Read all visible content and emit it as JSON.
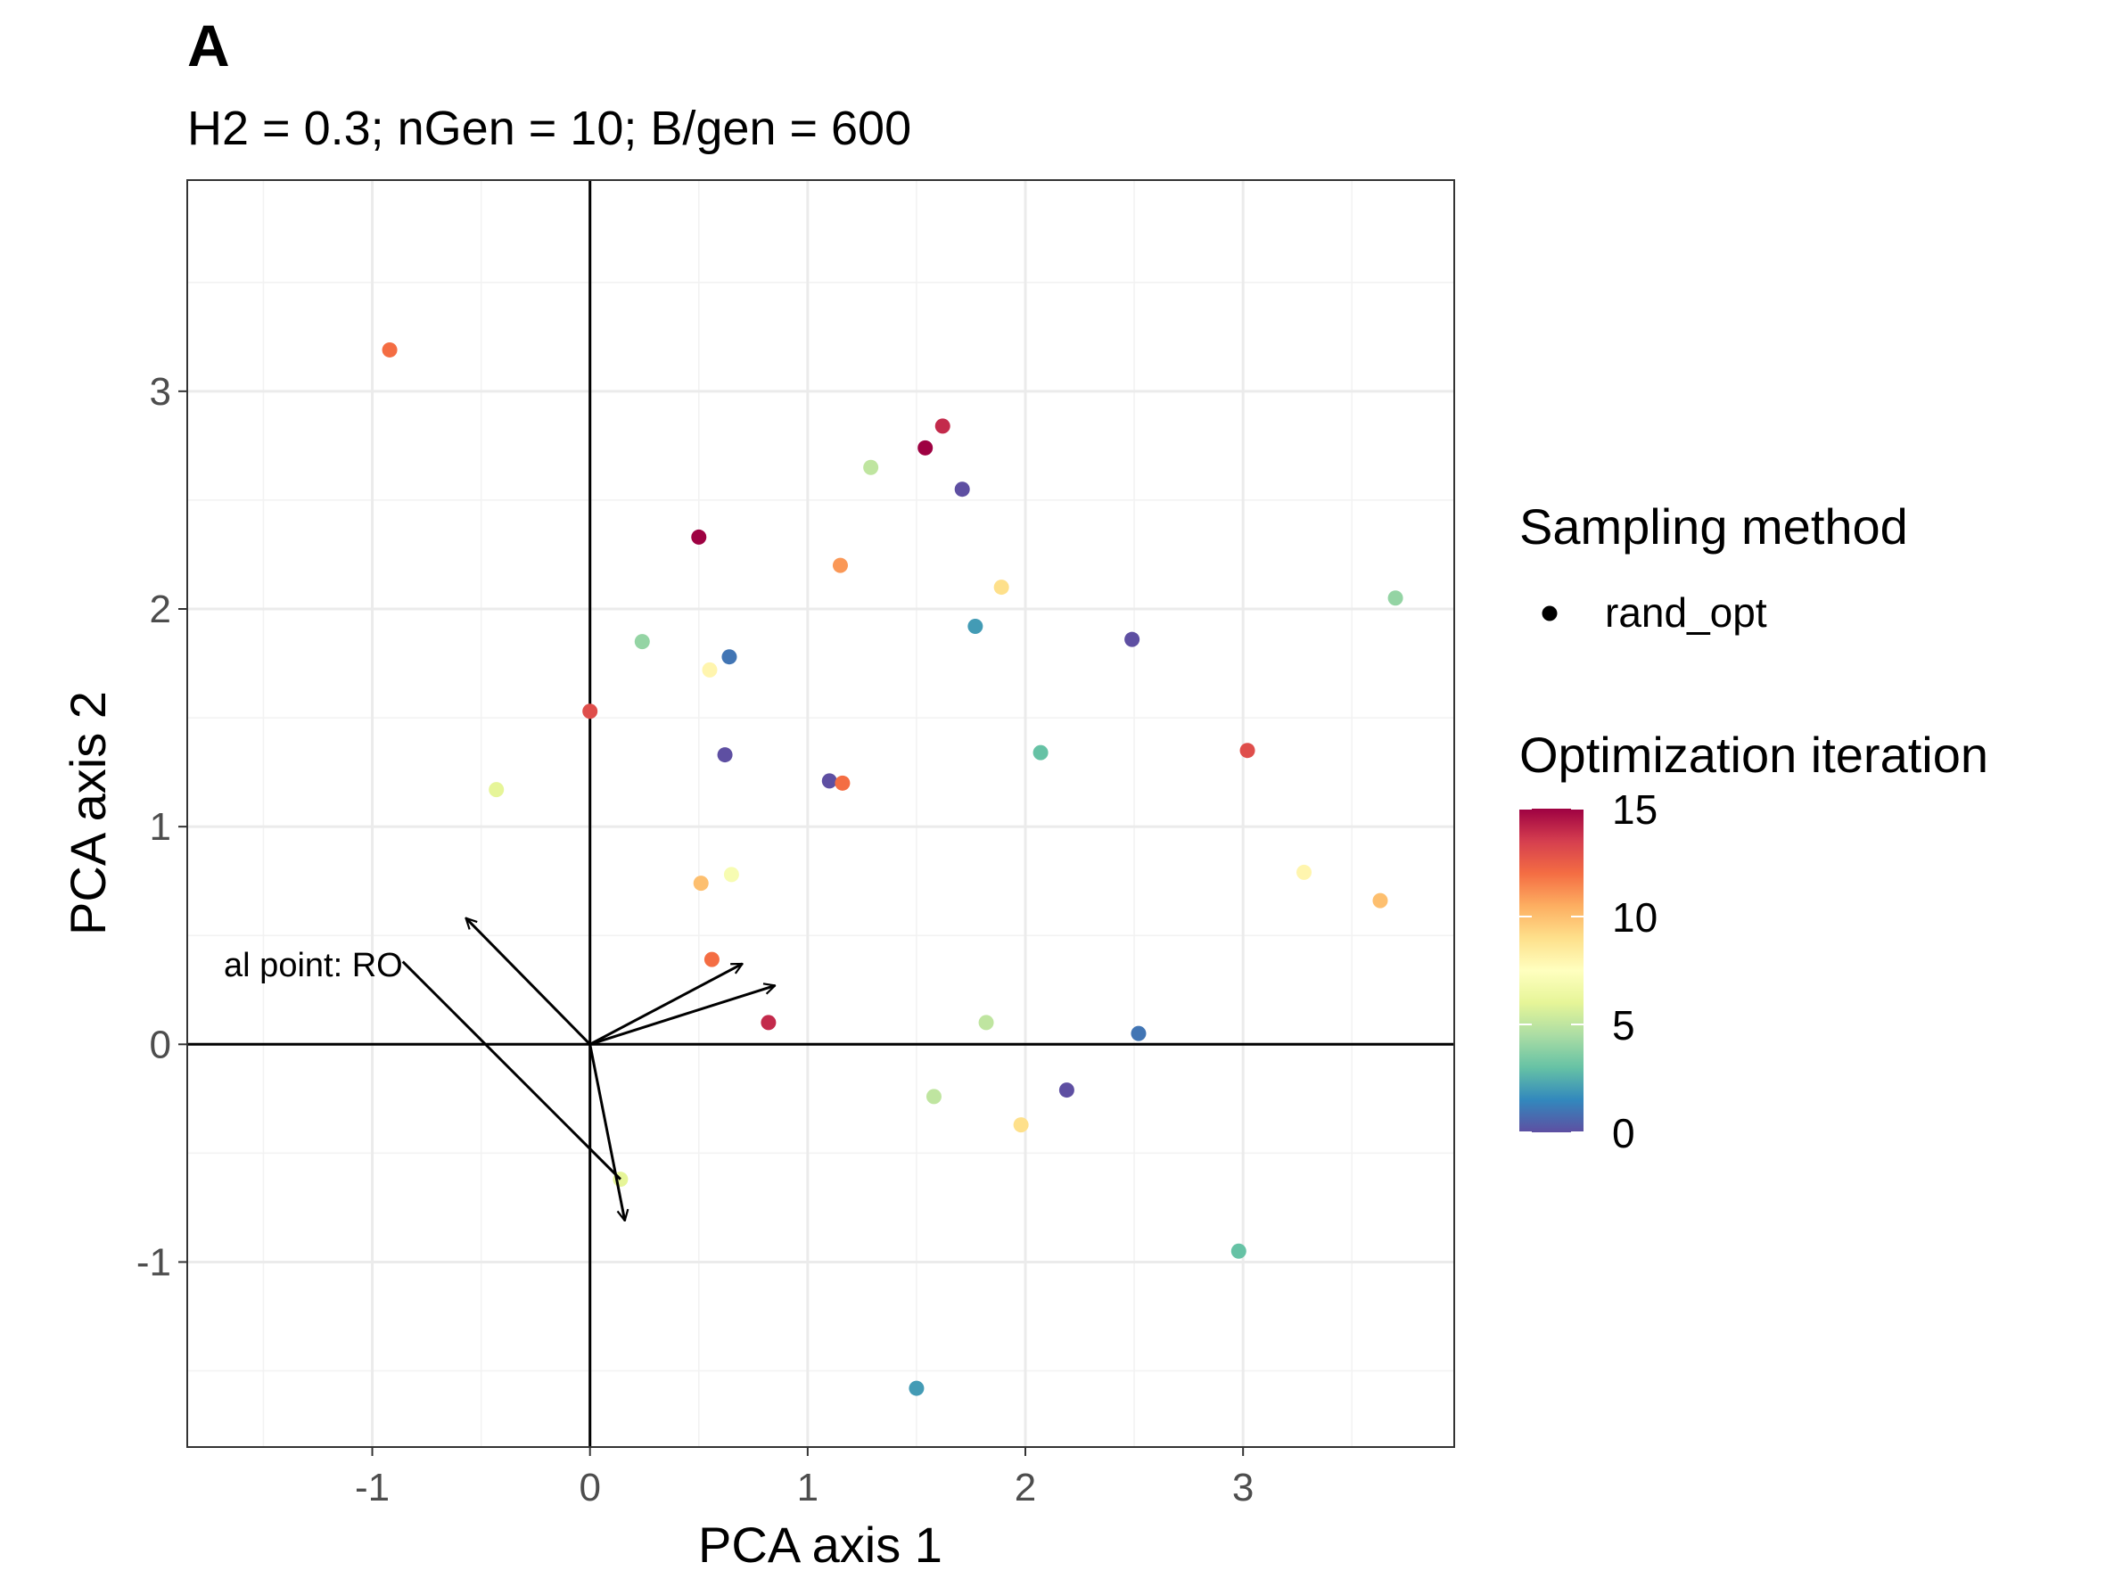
{
  "chart_data": {
    "type": "scatter",
    "panel_tag": "A",
    "subtitle": "H2 = 0.3; nGen = 10; B/gen = 600",
    "xlabel": "PCA axis 1",
    "ylabel": "PCA axis 2",
    "xlim": [
      -1.85,
      3.97
    ],
    "ylim": [
      -1.85,
      3.97
    ],
    "x_ticks": [
      -1,
      0,
      1,
      2,
      3
    ],
    "y_ticks": [
      -1,
      0,
      1,
      2,
      3
    ],
    "x_tick_labels": [
      "-1",
      "0",
      "1",
      "2",
      "3"
    ],
    "y_tick_labels": [
      "-1",
      "0",
      "1",
      "2",
      "3"
    ],
    "grid": true,
    "reference_lines": {
      "x": 0,
      "y": 0
    },
    "points": [
      {
        "x": -0.92,
        "y": 3.19,
        "iter": 12
      },
      {
        "x": 1.62,
        "y": 2.84,
        "iter": 14
      },
      {
        "x": 1.54,
        "y": 2.74,
        "iter": 15
      },
      {
        "x": 1.29,
        "y": 2.65,
        "iter": 5
      },
      {
        "x": 1.71,
        "y": 2.55,
        "iter": 0
      },
      {
        "x": 0.5,
        "y": 2.33,
        "iter": 15
      },
      {
        "x": 1.15,
        "y": 2.2,
        "iter": 11
      },
      {
        "x": 1.89,
        "y": 2.1,
        "iter": 9
      },
      {
        "x": 3.7,
        "y": 2.05,
        "iter": 4
      },
      {
        "x": 1.77,
        "y": 1.92,
        "iter": 2
      },
      {
        "x": 2.49,
        "y": 1.86,
        "iter": 0
      },
      {
        "x": 0.24,
        "y": 1.85,
        "iter": 4
      },
      {
        "x": 0.64,
        "y": 1.78,
        "iter": 1
      },
      {
        "x": 0.55,
        "y": 1.72,
        "iter": 8
      },
      {
        "x": 0.0,
        "y": 1.53,
        "iter": 13
      },
      {
        "x": 0.62,
        "y": 1.33,
        "iter": 0
      },
      {
        "x": 2.07,
        "y": 1.34,
        "iter": 3
      },
      {
        "x": 3.02,
        "y": 1.35,
        "iter": 13
      },
      {
        "x": 1.1,
        "y": 1.21,
        "iter": 0
      },
      {
        "x": 1.16,
        "y": 1.2,
        "iter": 12
      },
      {
        "x": -0.43,
        "y": 1.17,
        "iter": 6
      },
      {
        "x": 3.28,
        "y": 0.79,
        "iter": 8
      },
      {
        "x": 0.65,
        "y": 0.78,
        "iter": 7
      },
      {
        "x": 0.51,
        "y": 0.74,
        "iter": 10
      },
      {
        "x": 3.63,
        "y": 0.66,
        "iter": 10
      },
      {
        "x": 0.56,
        "y": 0.39,
        "iter": 12
      },
      {
        "x": 0.82,
        "y": 0.1,
        "iter": 14
      },
      {
        "x": 1.82,
        "y": 0.1,
        "iter": 5
      },
      {
        "x": 2.52,
        "y": 0.05,
        "iter": 1
      },
      {
        "x": 2.19,
        "y": -0.21,
        "iter": 0
      },
      {
        "x": 1.58,
        "y": -0.24,
        "iter": 5
      },
      {
        "x": 1.98,
        "y": -0.37,
        "iter": 9
      },
      {
        "x": 0.14,
        "y": -0.62,
        "iter": 6
      },
      {
        "x": 2.98,
        "y": -0.95,
        "iter": 3
      },
      {
        "x": 1.5,
        "y": -1.58,
        "iter": 2
      }
    ],
    "arrows": [
      {
        "x_end": -0.57,
        "y_end": 0.58
      },
      {
        "x_end": 0.7,
        "y_end": 0.37
      },
      {
        "x_end": 0.85,
        "y_end": 0.27
      },
      {
        "x_end": 0.16,
        "y_end": -0.81
      },
      {
        "x_start": -0.86,
        "y_start": 0.38,
        "x_end": 0.14,
        "y_end": -0.62
      }
    ],
    "annotation": {
      "text": "al point: RO",
      "x_end": -0.86,
      "y": 0.37
    },
    "legend": {
      "placement": "right",
      "shape_title": "Sampling method",
      "shape_entries": [
        "rand_opt"
      ],
      "color_title": "Optimization iteration",
      "color_min": 0,
      "color_max": 15,
      "color_ticks": [
        0,
        5,
        10,
        15
      ],
      "color_tick_labels": [
        "0",
        "5",
        "10",
        "15"
      ],
      "colormap": "Spectral (reversed)",
      "colormap_stops": [
        "#5E4FA2",
        "#3288BD",
        "#66C2A5",
        "#ABDDA4",
        "#E6F598",
        "#FFFFBF",
        "#FEE08B",
        "#FDAE61",
        "#F46D43",
        "#D53E4F",
        "#9E0142"
      ]
    }
  }
}
